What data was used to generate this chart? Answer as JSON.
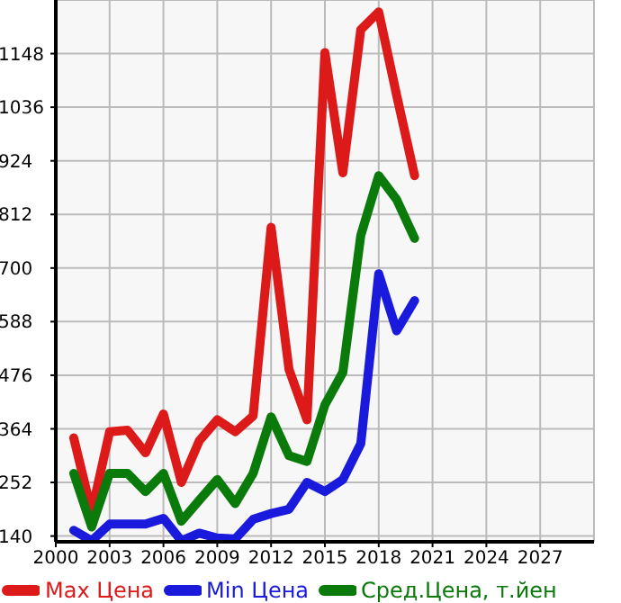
{
  "chart_data": {
    "type": "line",
    "x": [
      2001,
      2002,
      2003,
      2004,
      2005,
      2006,
      2007,
      2008,
      2009,
      2010,
      2011,
      2012,
      2013,
      2014,
      2015,
      2016,
      2017,
      2018,
      2019,
      2020
    ],
    "series": [
      {
        "name": "Max Цена",
        "color": "#dd1a1a",
        "values": [
          345,
          190,
          358,
          361,
          314,
          395,
          252,
          339,
          383,
          358,
          391,
          785,
          488,
          383,
          1150,
          899,
          1198,
          1235,
          1061,
          893
        ]
      },
      {
        "name": "Min Цена",
        "color": "#1a1add",
        "values": [
          152,
          130,
          165,
          165,
          165,
          177,
          130,
          146,
          136,
          134,
          175,
          187,
          196,
          252,
          233,
          258,
          333,
          688,
          569,
          632
        ]
      },
      {
        "name": "Сред.Цена, т.йен",
        "color": "#0a7a0a",
        "values": [
          271,
          159,
          271,
          271,
          233,
          271,
          171,
          215,
          258,
          208,
          271,
          389,
          308,
          296,
          414,
          482,
          768,
          893,
          843,
          762
        ]
      }
    ],
    "xlim": [
      2000,
      2030
    ],
    "xticks": [
      2000,
      2003,
      2006,
      2009,
      2012,
      2015,
      2018,
      2021,
      2024,
      2027
    ],
    "ylim": [
      128,
      1260
    ],
    "yticks": [
      140,
      252,
      364,
      476,
      588,
      700,
      812,
      924,
      1036,
      1148
    ],
    "grid": true,
    "legend": "bottom",
    "marker": "none",
    "line_style": "solid"
  }
}
